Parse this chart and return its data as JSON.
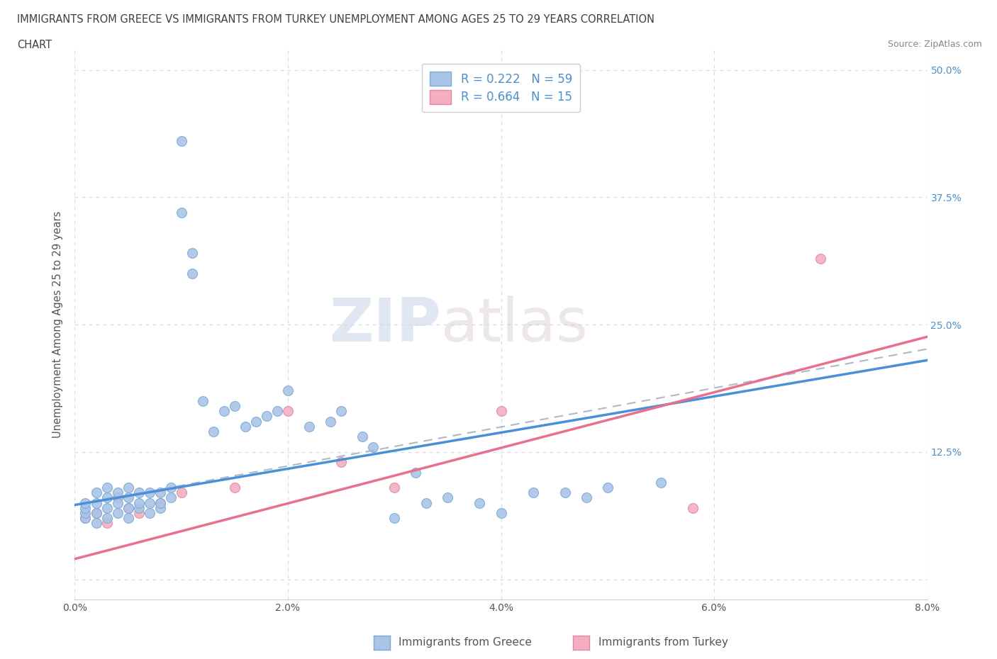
{
  "title_line1": "IMMIGRANTS FROM GREECE VS IMMIGRANTS FROM TURKEY UNEMPLOYMENT AMONG AGES 25 TO 29 YEARS CORRELATION",
  "title_line2": "CHART",
  "source": "Source: ZipAtlas.com",
  "ylabel": "Unemployment Among Ages 25 to 29 years",
  "xlim": [
    0.0,
    0.08
  ],
  "ylim": [
    -0.02,
    0.52
  ],
  "xticks": [
    0.0,
    0.02,
    0.04,
    0.06,
    0.08
  ],
  "xticklabels": [
    "0.0%",
    "2.0%",
    "4.0%",
    "6.0%",
    "8.0%"
  ],
  "yticks": [
    0.0,
    0.125,
    0.25,
    0.375,
    0.5
  ],
  "left_yticklabels": [
    "",
    "",
    "",
    "",
    ""
  ],
  "right_yticklabels": [
    "",
    "12.5%",
    "25.0%",
    "37.5%",
    "50.0%"
  ],
  "greece_color": "#aac4e8",
  "greece_edge": "#7aaad4",
  "turkey_color": "#f4aec0",
  "turkey_edge": "#e088a4",
  "greece_line_color": "#4a90d9",
  "turkey_line_color": "#e8708c",
  "trend_line_color": "#b0b8c8",
  "R_greece": 0.222,
  "N_greece": 59,
  "R_turkey": 0.664,
  "N_turkey": 15,
  "watermark_zip": "ZIP",
  "watermark_atlas": "atlas",
  "background_color": "#ffffff",
  "grid_color": "#d8dce8",
  "greece_scatter_x": [
    0.001,
    0.001,
    0.001,
    0.001,
    0.002,
    0.002,
    0.002,
    0.002,
    0.003,
    0.003,
    0.003,
    0.003,
    0.004,
    0.004,
    0.004,
    0.005,
    0.005,
    0.005,
    0.005,
    0.006,
    0.006,
    0.006,
    0.007,
    0.007,
    0.007,
    0.008,
    0.008,
    0.008,
    0.009,
    0.009,
    0.01,
    0.01,
    0.011,
    0.011,
    0.012,
    0.013,
    0.014,
    0.015,
    0.016,
    0.017,
    0.018,
    0.019,
    0.02,
    0.022,
    0.024,
    0.025,
    0.027,
    0.028,
    0.03,
    0.032,
    0.033,
    0.035,
    0.038,
    0.04,
    0.043,
    0.046,
    0.048,
    0.05,
    0.055
  ],
  "greece_scatter_y": [
    0.06,
    0.065,
    0.07,
    0.075,
    0.055,
    0.065,
    0.075,
    0.085,
    0.06,
    0.07,
    0.08,
    0.09,
    0.065,
    0.075,
    0.085,
    0.06,
    0.07,
    0.08,
    0.09,
    0.07,
    0.075,
    0.085,
    0.065,
    0.075,
    0.085,
    0.07,
    0.075,
    0.085,
    0.08,
    0.09,
    0.43,
    0.36,
    0.32,
    0.3,
    0.175,
    0.145,
    0.165,
    0.17,
    0.15,
    0.155,
    0.16,
    0.165,
    0.185,
    0.15,
    0.155,
    0.165,
    0.14,
    0.13,
    0.06,
    0.105,
    0.075,
    0.08,
    0.075,
    0.065,
    0.085,
    0.085,
    0.08,
    0.09,
    0.095
  ],
  "turkey_scatter_x": [
    0.001,
    0.002,
    0.003,
    0.004,
    0.005,
    0.006,
    0.008,
    0.01,
    0.015,
    0.02,
    0.025,
    0.03,
    0.04,
    0.058,
    0.07
  ],
  "turkey_scatter_y": [
    0.06,
    0.065,
    0.055,
    0.08,
    0.07,
    0.065,
    0.075,
    0.085,
    0.09,
    0.165,
    0.115,
    0.09,
    0.165,
    0.07,
    0.315
  ],
  "greece_trend_x0": 0.0,
  "greece_trend_y0": 0.073,
  "greece_trend_x1": 0.08,
  "greece_trend_y1": 0.215,
  "turkey_trend_x0": 0.0,
  "turkey_trend_y0": 0.02,
  "turkey_trend_x1": 0.08,
  "turkey_trend_y1": 0.238,
  "combined_trend_x0": 0.0,
  "combined_trend_y0": 0.073,
  "combined_trend_x1": 0.08,
  "combined_trend_y1": 0.226
}
